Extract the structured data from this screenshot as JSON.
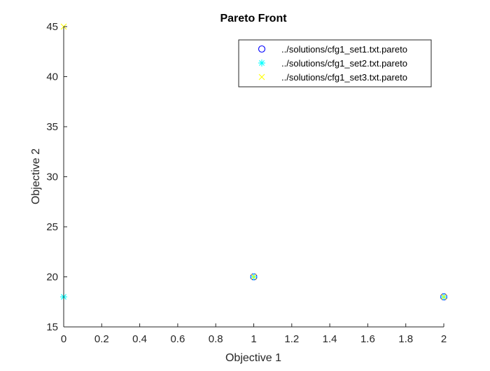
{
  "chart_data": {
    "type": "scatter",
    "title": "Pareto Front",
    "xlabel": "Objective 1",
    "ylabel": "Objective 2",
    "xlim": [
      0,
      2
    ],
    "ylim": [
      15,
      45
    ],
    "xticks": [
      0,
      0.2,
      0.4,
      0.6,
      0.8,
      1,
      1.2,
      1.4,
      1.6,
      1.8,
      2
    ],
    "yticks": [
      15,
      20,
      25,
      30,
      35,
      40,
      45
    ],
    "xtick_labels": [
      "0",
      "0.2",
      "0.4",
      "0.6",
      "0.8",
      "1",
      "1.2",
      "1.4",
      "1.6",
      "1.8",
      "2"
    ],
    "ytick_labels": [
      "15",
      "20",
      "25",
      "30",
      "35",
      "40",
      "45"
    ],
    "grid": false,
    "legend_position": "top-right",
    "series": [
      {
        "name": "../solutions/cfg1_set1.txt.pareto",
        "marker": "circle",
        "color": "#0000ff",
        "points": [
          {
            "x": 1,
            "y": 20
          },
          {
            "x": 2,
            "y": 18
          }
        ]
      },
      {
        "name": "../solutions/cfg1_set2.txt.pareto",
        "marker": "asterisk",
        "color": "#00ffff",
        "points": [
          {
            "x": 0,
            "y": 18
          },
          {
            "x": 1,
            "y": 20
          },
          {
            "x": 2,
            "y": 18
          }
        ]
      },
      {
        "name": "../solutions/cfg1_set3.txt.pareto",
        "marker": "x",
        "color": "#ffff00",
        "points": [
          {
            "x": 0,
            "y": 45
          },
          {
            "x": 1,
            "y": 20
          },
          {
            "x": 2,
            "y": 18
          }
        ]
      }
    ]
  }
}
